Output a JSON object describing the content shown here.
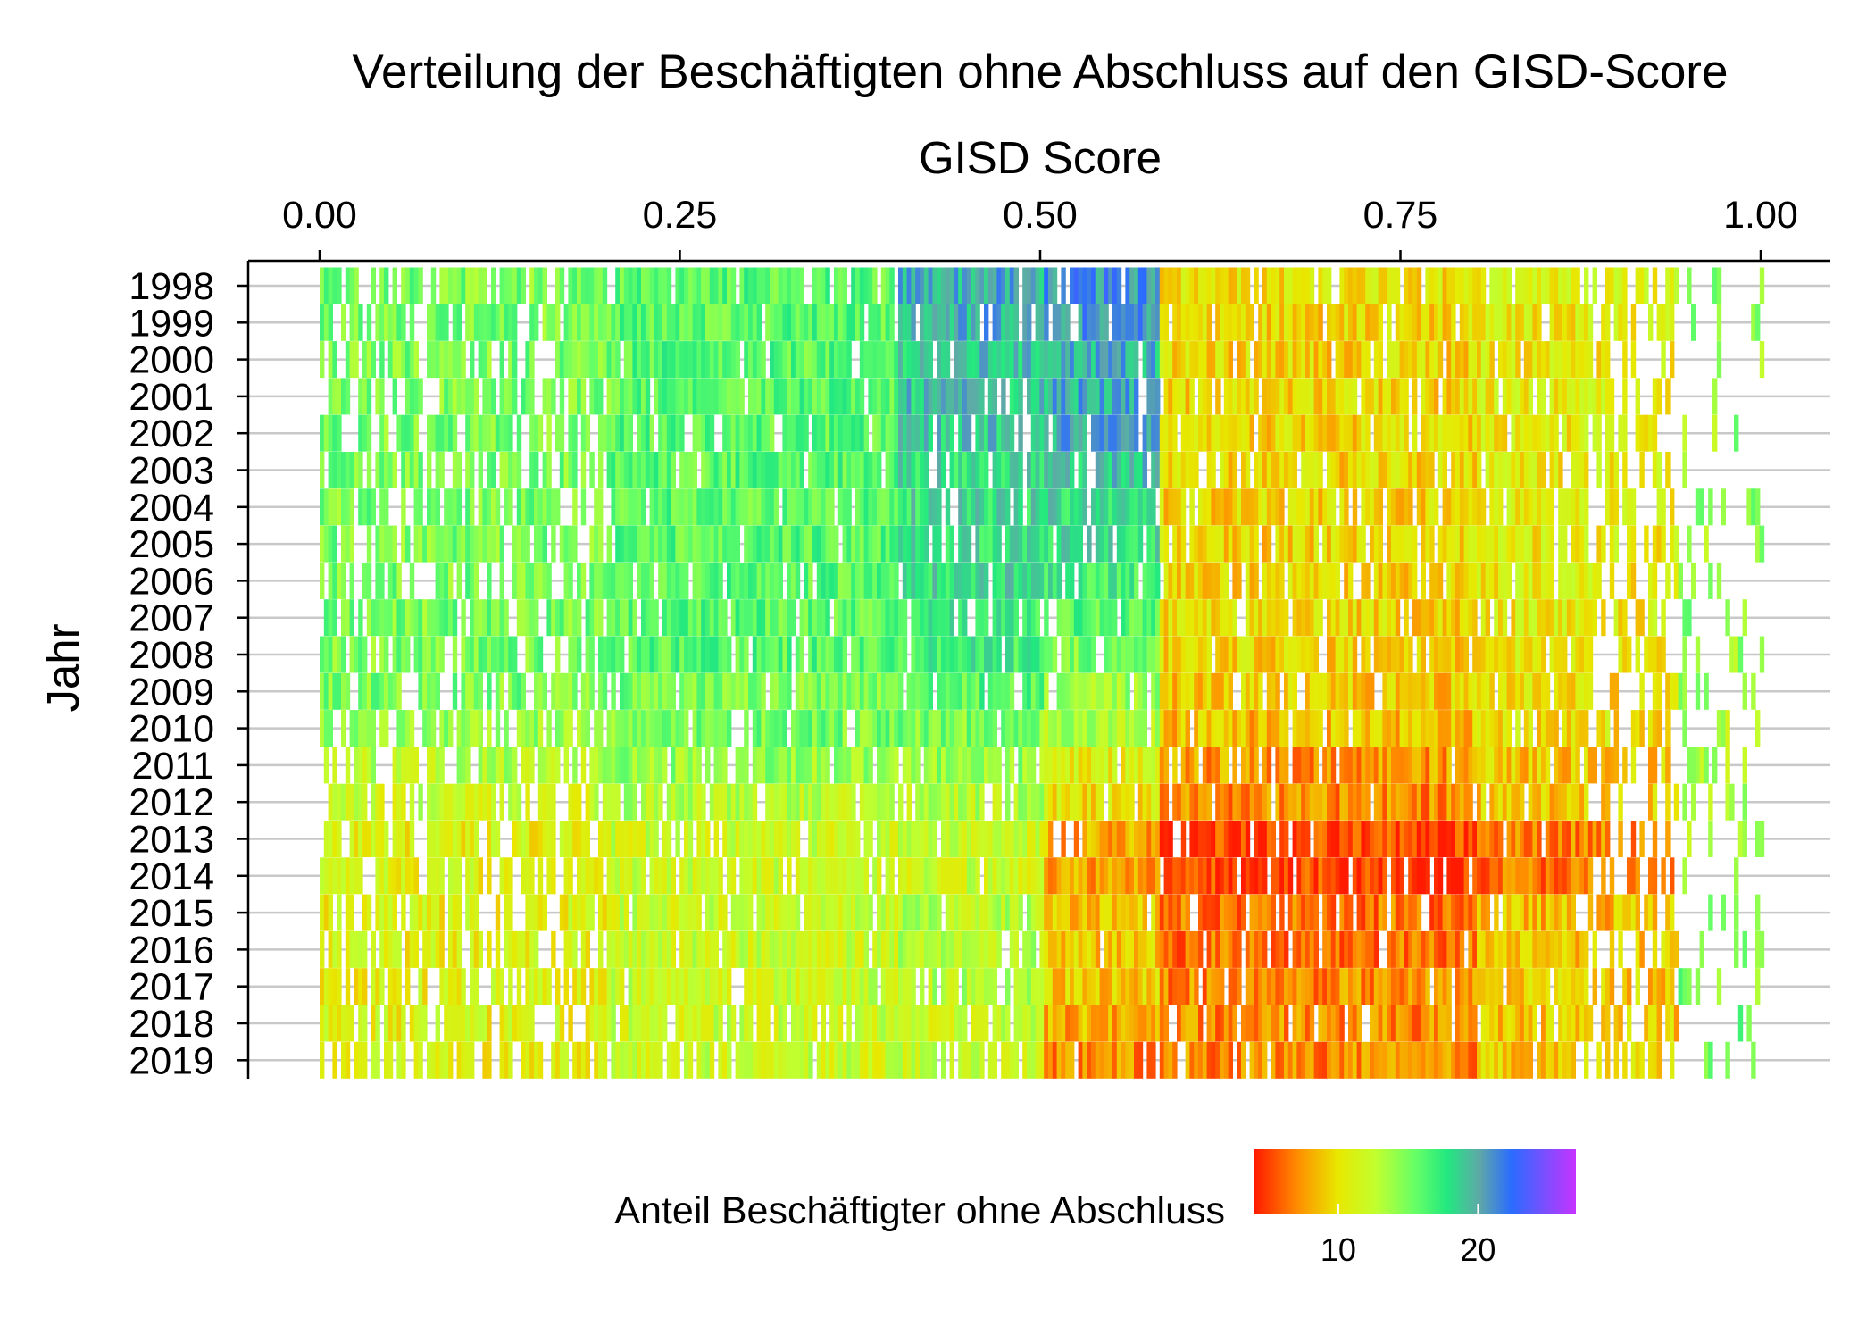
{
  "chart_data": {
    "type": "heatmap",
    "title": "Verteilung der Beschäftigten ohne Abschluss auf den GISD-Score",
    "xlabel": "GISD Score",
    "ylabel": "Jahr",
    "x_axis_position": "top",
    "xlim": [
      0,
      1
    ],
    "x_ticks": [
      "0.00",
      "0.25",
      "0.50",
      "0.75",
      "1.00"
    ],
    "years": [
      "1998",
      "1999",
      "2000",
      "2001",
      "2002",
      "2003",
      "2004",
      "2005",
      "2006",
      "2007",
      "2008",
      "2009",
      "2010",
      "2011",
      "2012",
      "2013",
      "2014",
      "2015",
      "2016",
      "2017",
      "2018",
      "2019"
    ],
    "value_description": "Anteil Beschäftigter ohne Abschluss (%) per district, plotted at its GISD score for each year",
    "bands_by_year": {
      "note": "approximate representative value (%) per GISD band [0.00-0.20, 0.20-0.40, 0.40-0.50, 0.50-0.58, 0.58-0.80, 0.80-0.94, 0.94-1.00]",
      "1998": [
        15,
        16,
        20,
        21,
        10,
        11,
        14
      ],
      "1999": [
        15,
        16,
        20,
        21,
        9.5,
        10.5,
        14
      ],
      "2000": [
        15,
        16,
        19,
        20,
        9.5,
        10.5,
        14
      ],
      "2001": [
        15,
        16,
        19,
        20,
        9.5,
        10.5,
        14
      ],
      "2002": [
        15,
        16,
        19,
        20,
        9.5,
        10.5,
        14
      ],
      "2003": [
        15,
        16,
        18,
        19,
        9.5,
        10.5,
        14
      ],
      "2004": [
        15,
        16,
        18,
        18,
        9.5,
        10.5,
        14
      ],
      "2005": [
        15,
        16,
        18,
        18,
        9.5,
        10.5,
        14
      ],
      "2006": [
        15,
        16,
        18,
        17,
        9.5,
        10.5,
        14
      ],
      "2007": [
        15,
        16,
        17,
        16,
        9.5,
        10.5,
        14
      ],
      "2008": [
        15,
        16,
        17,
        15,
        9.5,
        10.5,
        14
      ],
      "2009": [
        15,
        15,
        16,
        14,
        9,
        10,
        14
      ],
      "2010": [
        14,
        15,
        15,
        13,
        8.5,
        10,
        13
      ],
      "2011": [
        13,
        14,
        14,
        11,
        7.5,
        9,
        13
      ],
      "2012": [
        12,
        13,
        13,
        10,
        7,
        9,
        13
      ],
      "2013": [
        11,
        12,
        12,
        8,
        5,
        7,
        13
      ],
      "2014": [
        11,
        12,
        12,
        8,
        5,
        6.5,
        13
      ],
      "2015": [
        11,
        12,
        13,
        9,
        6.5,
        8.5,
        14
      ],
      "2016": [
        11,
        12,
        13,
        9,
        6.5,
        9,
        15
      ],
      "2017": [
        11,
        12,
        13,
        9,
        7,
        9,
        15
      ],
      "2018": [
        11,
        12,
        12,
        8,
        7,
        9,
        16
      ],
      "2019": [
        11,
        12,
        12,
        7,
        7,
        9,
        16
      ]
    },
    "legend": {
      "title": "Anteil Beschäftigter ohne Abschluss",
      "position": "bottom",
      "tick_labels": [
        "10",
        "20"
      ],
      "scale_min": 4,
      "scale_max": 27,
      "colors": [
        "#ff1a00",
        "#ff8a00",
        "#e8e800",
        "#c0ff30",
        "#66ff66",
        "#22e880",
        "#5fa8a8",
        "#2a6cff",
        "#c633ff"
      ]
    },
    "grid": {
      "horizontal": true,
      "vertical": false
    }
  }
}
